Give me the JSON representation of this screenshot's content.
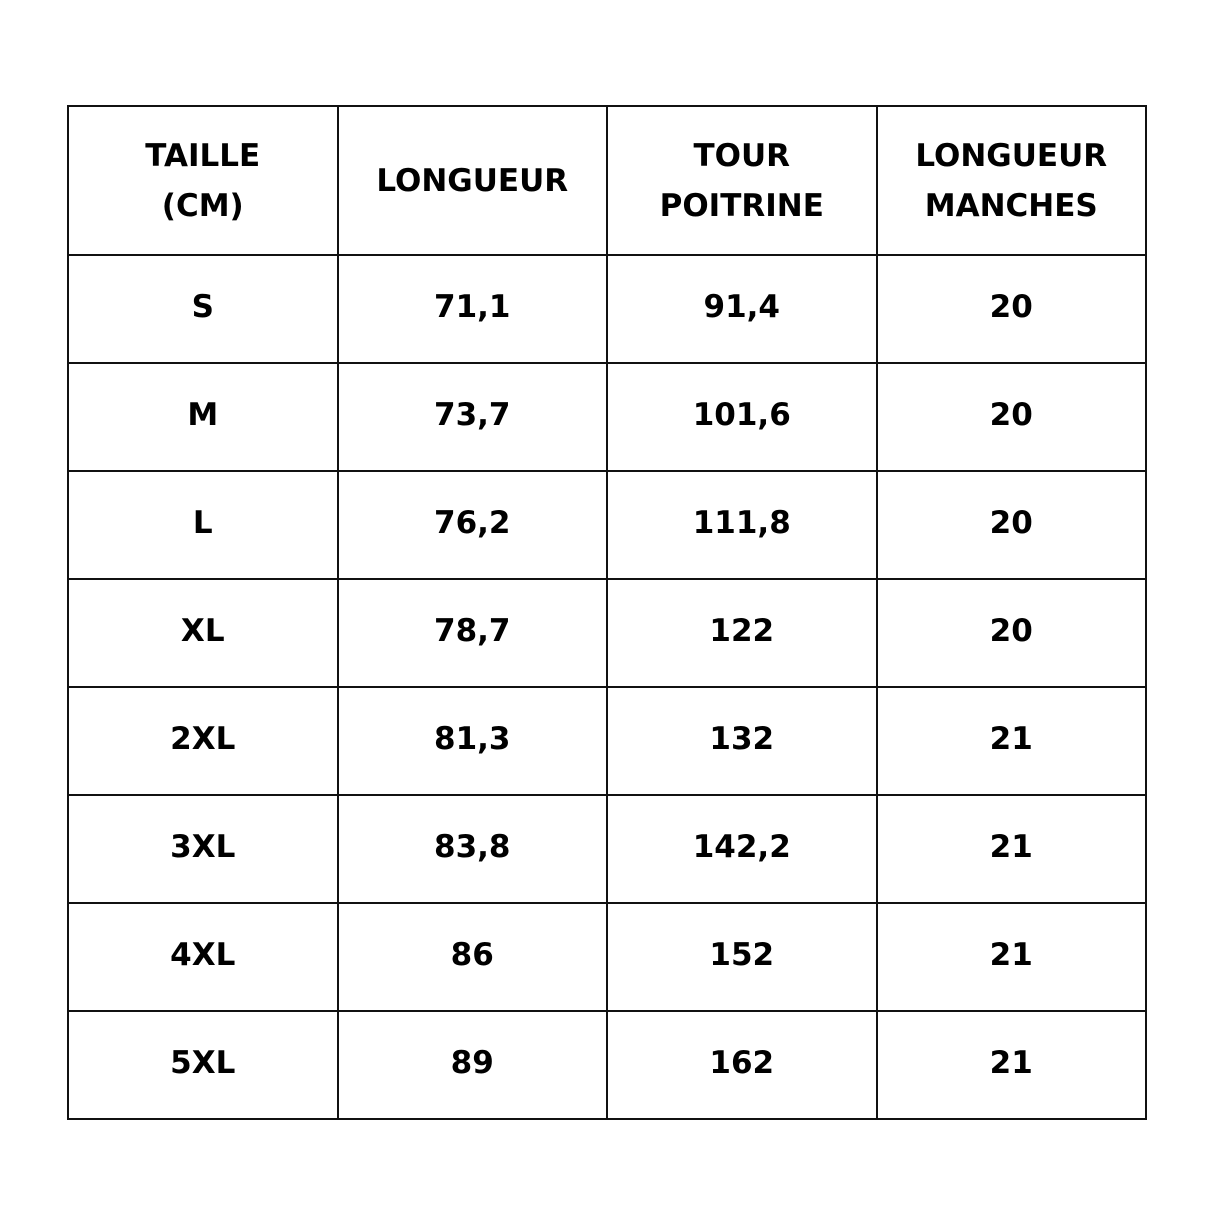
{
  "headers": [
    [
      "TAILLE",
      "(CM)"
    ],
    [
      "LONGUEUR"
    ],
    [
      "TOUR",
      "POITRINE"
    ],
    [
      "LONGUEUR",
      "MANCHES"
    ]
  ],
  "rows": [
    [
      "S",
      "71,1",
      "91,4",
      "20"
    ],
    [
      "M",
      "73,7",
      "101,6",
      "20"
    ],
    [
      "L",
      "76,2",
      "111,8",
      "20"
    ],
    [
      "XL",
      "78,7",
      "122",
      "20"
    ],
    [
      "2XL",
      "81,3",
      "132",
      "21"
    ],
    [
      "3XL",
      "83,8",
      "142,2",
      "21"
    ],
    [
      "4XL",
      "86",
      "152",
      "21"
    ],
    [
      "5XL",
      "89",
      "162",
      "21"
    ]
  ]
}
